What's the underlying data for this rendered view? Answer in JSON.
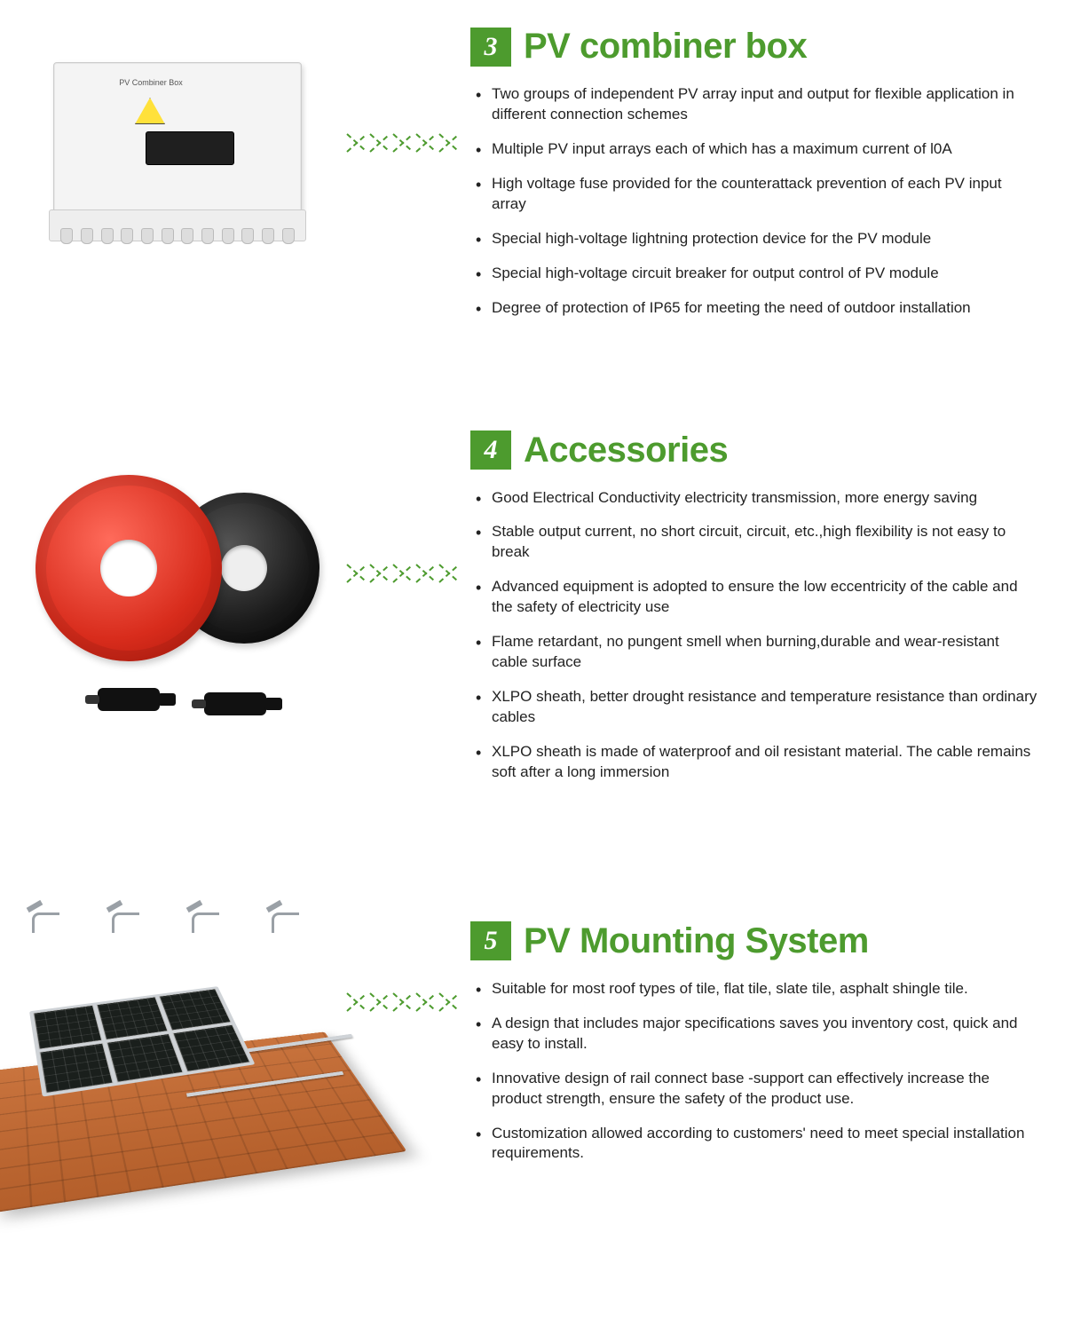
{
  "colors": {
    "accent_green": "#4d9b2e",
    "title_green": "#4d9b2e",
    "text": "#222222",
    "background": "#ffffff",
    "chevron": "#4d9b2e",
    "numbox_bg": "#4d9b2e",
    "numbox_text": "#ffffff"
  },
  "typography": {
    "title_fontsize": 40,
    "title_weight": 700,
    "numbox_fontsize": 30,
    "body_fontsize": 17
  },
  "arrow": {
    "chevron_count": 5,
    "dash_style": "dashed",
    "stroke_width": 2
  },
  "sections": [
    {
      "number": "3",
      "title": "PV combiner box",
      "image_kind": "pv-combiner-box",
      "image_label": "PV Combiner Box",
      "bullets": [
        "Two groups of independent PV array input and output for flexible application in different connection schemes",
        "Multiple PV input arrays each of which has a maximum current of l0A",
        "High voltage fuse provided for the counterattack prevention of each PV input array",
        "Special high-voltage lightning protection device for the PV module",
        "Special high-voltage circuit breaker for output control of PV module",
        "Degree of protection of IP65 for meeting the need of outdoor installation"
      ]
    },
    {
      "number": "4",
      "title": "Accessories",
      "image_kind": "cables-and-connectors",
      "bullets": [
        "Good Electrical Conductivity electricity transmission, more energy saving",
        "Stable output current, no short circuit, circuit, etc.,high flexibility is not easy to break",
        "Advanced equipment is adopted to ensure the low eccentricity of the cable and the safety of electricity use",
        "Flame retardant, no pungent smell when burning,durable and wear-resistant cable surface",
        "XLPO sheath, better drought resistance and temperature resistance than ordinary cables",
        "XLPO sheath is made of waterproof and oil resistant material. The cable remains soft after a long immersion"
      ]
    },
    {
      "number": "5",
      "title": "PV Mounting System",
      "image_kind": "roof-mounting-system",
      "bullets": [
        "Suitable for most roof types of tile, flat tile, slate tile, asphalt shingle tile.",
        "A design that includes major specifications saves you inventory cost, quick and easy to install.",
        "Innovative design of rail connect base -support can effectively increase the product strength, ensure the safety of the product use.",
        "Customization allowed according to customers' need to meet special installation requirements."
      ]
    }
  ]
}
